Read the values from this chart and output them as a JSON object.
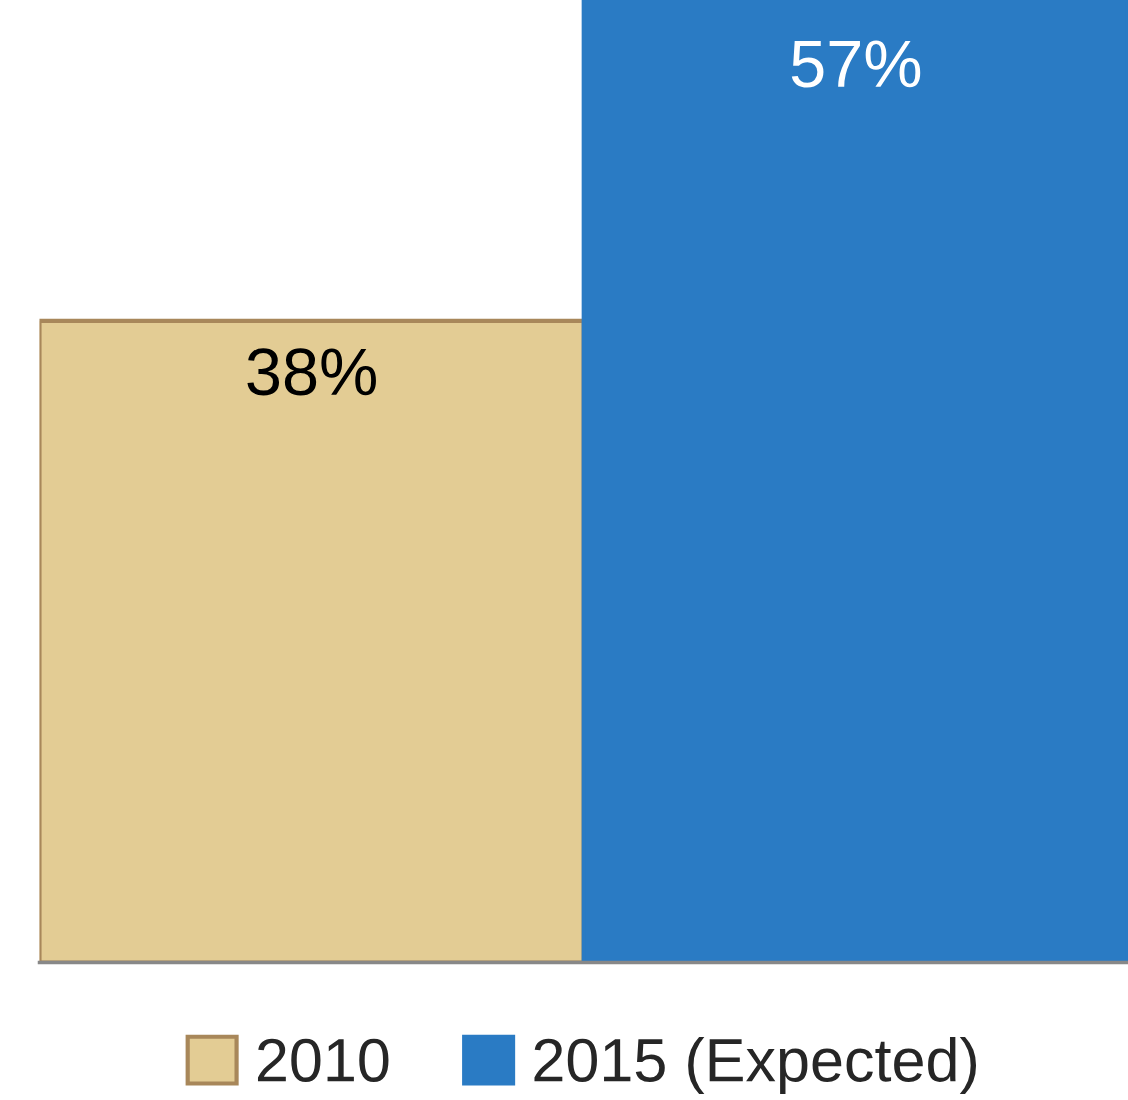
{
  "chart_data": {
    "type": "bar",
    "categories": [
      null
    ],
    "series": [
      {
        "name": "2010",
        "color": "#e3cc94",
        "values": [
          38
        ],
        "value_labels": [
          "38%"
        ]
      },
      {
        "name": "2015 (Expected)",
        "color": "#2a7bc4",
        "values": [
          57
        ],
        "value_labels": [
          "57%"
        ]
      }
    ],
    "legend": "bottom"
  }
}
